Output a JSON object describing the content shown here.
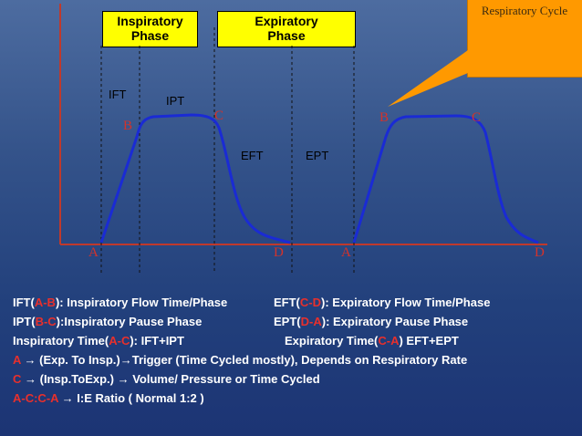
{
  "phases": {
    "inspiratory": [
      "Inspiratory",
      "Phase"
    ],
    "expiratory": [
      "Expiratory",
      "Phase"
    ]
  },
  "callout": {
    "label": "Respiratory Cycle"
  },
  "waveform_labels": {
    "ift": "IFT",
    "ipt": "IPT",
    "eft": "EFT",
    "ept": "EPT"
  },
  "points": {
    "a1": "A",
    "b1": "B",
    "c1": "C",
    "d1": "D",
    "a2": "A",
    "b2": "B",
    "c2": "C",
    "d2": "D"
  },
  "colors": {
    "waveform": "#1a2bd4",
    "axis": "#c0392b",
    "phase_box": "#ffff00",
    "callout": "#ff9900",
    "point_label": "#d4322a"
  },
  "notes": {
    "line1": {
      "a": "IFT(",
      "b": "A-B",
      "c": "): Inspiratory Flow Time/Phase"
    },
    "line1b": {
      "a": "EFT(",
      "b": "C-D",
      "c": "): Expiratory Flow Time/Phase"
    },
    "line2": {
      "a": "IPT(",
      "b": "B-C",
      "c": "):Inspiratory Pause Phase"
    },
    "line2b": {
      "a": "EPT(",
      "b": "D-A",
      "c": "): Expiratory Pause Phase"
    },
    "line3": {
      "a": "Inspiratory Time(",
      "b": "A-C",
      "c": "): IFT+IPT"
    },
    "line3b": {
      "a": "Expiratory Time(",
      "b": "C-A",
      "c": ") EFT+EPT"
    },
    "line4": {
      "a": "A",
      "c": " → (Exp. To Insp.)→Trigger (Time Cycled mostly), Depends on Respiratory Rate"
    },
    "line5": {
      "a": "C",
      "c": " → (Insp.ToExp.) →   Volume/ Pressure or Time Cycled"
    },
    "line6": {
      "a": "A-C:C-A",
      "c": " → I:E Ratio ( Normal 1:2 )"
    }
  }
}
